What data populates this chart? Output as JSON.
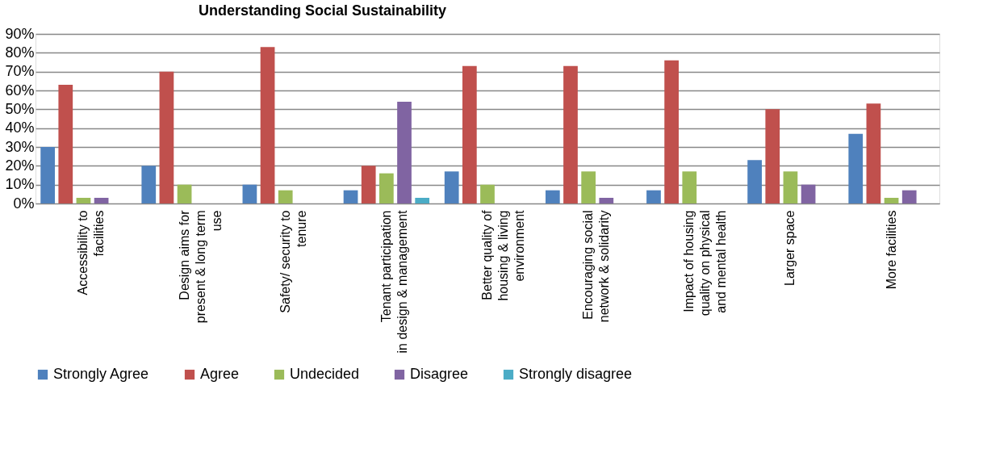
{
  "chart_data": {
    "type": "bar",
    "title": "Understanding Social Sustainability",
    "categories": [
      "Accessibility to facilities",
      "Design aims for present & long term use",
      "Safety/ security to tenure",
      "Tenant participation in design & management",
      "Better quality of housing & living environment",
      "Encouraging social network & solidarity",
      "Impact of housing quality on physical and mental health",
      "Larger space",
      "More facilities"
    ],
    "series": [
      {
        "name": "Strongly Agree",
        "color": "#4f81bd",
        "values": [
          30,
          20,
          10,
          7,
          17,
          7,
          7,
          23,
          37
        ]
      },
      {
        "name": "Agree",
        "color": "#c0504d",
        "values": [
          63,
          70,
          83,
          20,
          73,
          73,
          76,
          50,
          53
        ]
      },
      {
        "name": "Undecided",
        "color": "#9bbb59",
        "values": [
          3,
          10,
          7,
          16,
          10,
          17,
          17,
          17,
          3
        ]
      },
      {
        "name": "Disagree",
        "color": "#8064a2",
        "values": [
          3,
          null,
          null,
          54,
          null,
          3,
          null,
          10,
          7
        ]
      },
      {
        "name": "Strongly disagree",
        "color": "#4bacc6",
        "values": [
          null,
          null,
          null,
          3,
          null,
          null,
          null,
          null,
          null
        ]
      }
    ],
    "ylim": [
      0,
      90
    ],
    "yticks": [
      {
        "value": 0,
        "label": "0%"
      },
      {
        "value": 10,
        "label": "10%"
      },
      {
        "value": 20,
        "label": "20%"
      },
      {
        "value": 30,
        "label": "30%"
      },
      {
        "value": 40,
        "label": "40%"
      },
      {
        "value": 50,
        "label": "50%"
      },
      {
        "value": 60,
        "label": "60%"
      },
      {
        "value": 70,
        "label": "70%"
      },
      {
        "value": 80,
        "label": "80%"
      },
      {
        "value": 90,
        "label": "90%"
      }
    ],
    "grid": "y",
    "legend": "bottom"
  }
}
